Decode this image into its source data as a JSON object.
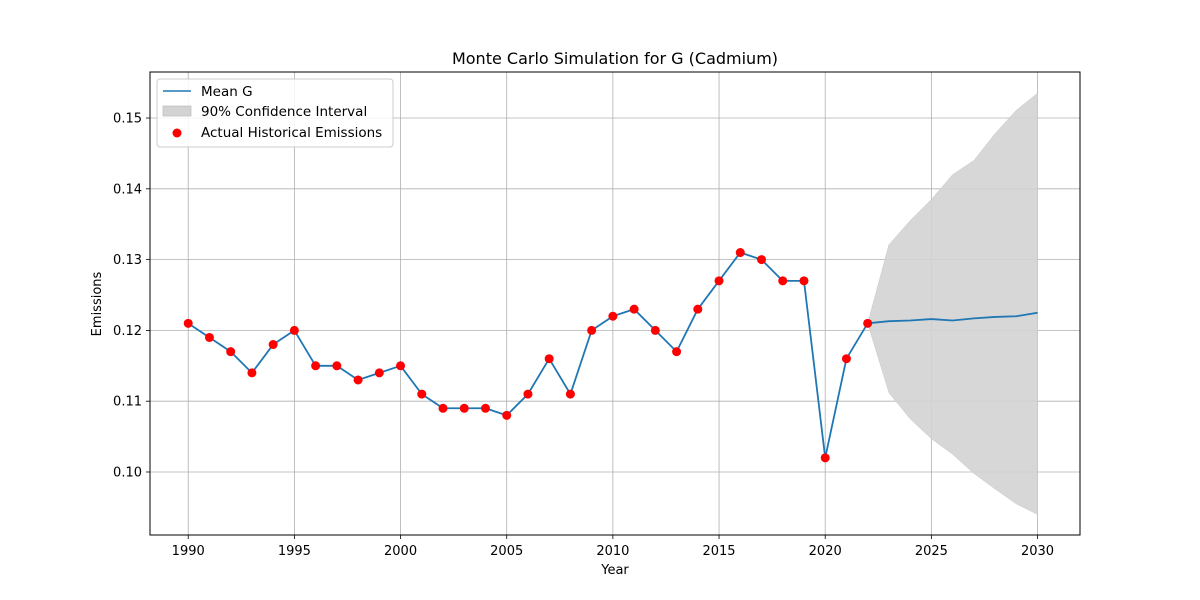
{
  "chart_data": {
    "type": "line",
    "title": "Monte Carlo Simulation for G (Cadmium)",
    "xlabel": "Year",
    "ylabel": "Emissions",
    "xlim": [
      1988.2,
      2032.0
    ],
    "ylim": [
      0.0911,
      0.1565
    ],
    "xticks": [
      1990,
      1995,
      2000,
      2005,
      2010,
      2015,
      2020,
      2025,
      2030
    ],
    "yticks": [
      0.1,
      0.11,
      0.12,
      0.13,
      0.14,
      0.15
    ],
    "ytick_labels": [
      "0.10",
      "0.11",
      "0.12",
      "0.13",
      "0.14",
      "0.15"
    ],
    "grid": true,
    "legend_position": "top-left",
    "series": [
      {
        "name": "Mean G",
        "kind": "line",
        "color": "#1f77b4",
        "x": [
          1990,
          1991,
          1992,
          1993,
          1994,
          1995,
          1996,
          1997,
          1998,
          1999,
          2000,
          2001,
          2002,
          2003,
          2004,
          2005,
          2006,
          2007,
          2008,
          2009,
          2010,
          2011,
          2012,
          2013,
          2014,
          2015,
          2016,
          2017,
          2018,
          2019,
          2020,
          2021,
          2022,
          2023,
          2024,
          2025,
          2026,
          2027,
          2028,
          2029,
          2030
        ],
        "y": [
          0.121,
          0.119,
          0.117,
          0.114,
          0.118,
          0.12,
          0.115,
          0.115,
          0.113,
          0.114,
          0.115,
          0.111,
          0.109,
          0.109,
          0.109,
          0.108,
          0.111,
          0.116,
          0.111,
          0.12,
          0.122,
          0.123,
          0.12,
          0.117,
          0.123,
          0.127,
          0.131,
          0.13,
          0.127,
          0.127,
          0.102,
          0.116,
          0.121,
          0.1213,
          0.1214,
          0.1216,
          0.1214,
          0.1217,
          0.1219,
          0.122,
          0.1225
        ]
      },
      {
        "name": "90% Confidence Interval",
        "kind": "band",
        "color": "#d3d3d3",
        "x": [
          2022,
          2023,
          2024,
          2025,
          2026,
          2027,
          2028,
          2029,
          2030
        ],
        "lower": [
          0.121,
          0.1112,
          0.1075,
          0.1047,
          0.1025,
          0.0998,
          0.0976,
          0.0955,
          0.094
        ],
        "upper": [
          0.121,
          0.1321,
          0.1355,
          0.1385,
          0.142,
          0.144,
          0.1478,
          0.1511,
          0.1535
        ]
      },
      {
        "name": "Actual Historical Emissions",
        "kind": "scatter",
        "color": "#ff0000",
        "x": [
          1990,
          1991,
          1992,
          1993,
          1994,
          1995,
          1996,
          1997,
          1998,
          1999,
          2000,
          2001,
          2002,
          2003,
          2004,
          2005,
          2006,
          2007,
          2008,
          2009,
          2010,
          2011,
          2012,
          2013,
          2014,
          2015,
          2016,
          2017,
          2018,
          2019,
          2020,
          2021,
          2022
        ],
        "y": [
          0.121,
          0.119,
          0.117,
          0.114,
          0.118,
          0.12,
          0.115,
          0.115,
          0.113,
          0.114,
          0.115,
          0.111,
          0.109,
          0.109,
          0.109,
          0.108,
          0.111,
          0.116,
          0.111,
          0.12,
          0.122,
          0.123,
          0.12,
          0.117,
          0.123,
          0.127,
          0.131,
          0.13,
          0.127,
          0.127,
          0.102,
          0.116,
          0.121
        ]
      }
    ]
  }
}
